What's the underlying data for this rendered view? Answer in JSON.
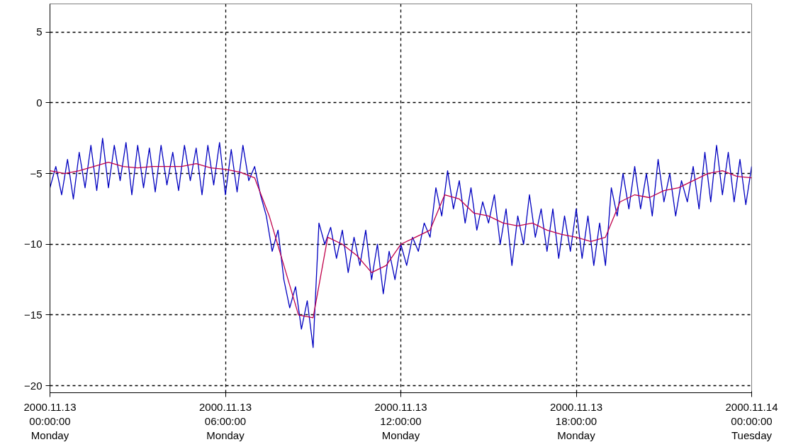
{
  "chart_data": {
    "type": "line",
    "xlim": [
      "2000-11-13T00:00",
      "2000-11-14T00:00"
    ],
    "xticks": [
      {
        "value": "2000-11-13T00:00",
        "label": "2000.11.13\n00:00:00\nMonday"
      },
      {
        "value": "2000-11-13T06:00",
        "label": "2000.11.13\n06:00:00\nMonday"
      },
      {
        "value": "2000-11-13T12:00",
        "label": "2000.11.13\n12:00:00\nMonday"
      },
      {
        "value": "2000-11-13T18:00",
        "label": "2000.11.13\n18:00:00\nMonday"
      },
      {
        "value": "2000-11-14T00:00",
        "label": "2000.11.14\n00:00:00\nTuesday"
      }
    ],
    "ylim": [
      -20.5,
      7
    ],
    "yticks": [
      -20,
      -15,
      -10,
      -5,
      0,
      5
    ],
    "grid": true,
    "line_style": "solid",
    "series": [
      {
        "color": "#0000c0",
        "x": [
          "2000-11-13T00:00",
          "2000-11-13T00:12",
          "2000-11-13T00:24",
          "2000-11-13T00:36",
          "2000-11-13T00:48",
          "2000-11-13T01:00",
          "2000-11-13T01:12",
          "2000-11-13T01:24",
          "2000-11-13T01:36",
          "2000-11-13T01:48",
          "2000-11-13T02:00",
          "2000-11-13T02:12",
          "2000-11-13T02:24",
          "2000-11-13T02:36",
          "2000-11-13T02:48",
          "2000-11-13T03:00",
          "2000-11-13T03:12",
          "2000-11-13T03:24",
          "2000-11-13T03:36",
          "2000-11-13T03:48",
          "2000-11-13T04:00",
          "2000-11-13T04:12",
          "2000-11-13T04:24",
          "2000-11-13T04:36",
          "2000-11-13T04:48",
          "2000-11-13T05:00",
          "2000-11-13T05:12",
          "2000-11-13T05:24",
          "2000-11-13T05:36",
          "2000-11-13T05:48",
          "2000-11-13T06:00",
          "2000-11-13T06:12",
          "2000-11-13T06:24",
          "2000-11-13T06:36",
          "2000-11-13T06:48",
          "2000-11-13T07:00",
          "2000-11-13T07:12",
          "2000-11-13T07:24",
          "2000-11-13T07:36",
          "2000-11-13T07:48",
          "2000-11-13T08:00",
          "2000-11-13T08:12",
          "2000-11-13T08:24",
          "2000-11-13T08:36",
          "2000-11-13T08:48",
          "2000-11-13T09:00",
          "2000-11-13T09:12",
          "2000-11-13T09:24",
          "2000-11-13T09:36",
          "2000-11-13T09:48",
          "2000-11-13T10:00",
          "2000-11-13T10:12",
          "2000-11-13T10:24",
          "2000-11-13T10:36",
          "2000-11-13T10:48",
          "2000-11-13T11:00",
          "2000-11-13T11:12",
          "2000-11-13T11:24",
          "2000-11-13T11:36",
          "2000-11-13T11:48",
          "2000-11-13T12:00",
          "2000-11-13T12:12",
          "2000-11-13T12:24",
          "2000-11-13T12:36",
          "2000-11-13T12:48",
          "2000-11-13T13:00",
          "2000-11-13T13:12",
          "2000-11-13T13:24",
          "2000-11-13T13:36",
          "2000-11-13T13:48",
          "2000-11-13T14:00",
          "2000-11-13T14:12",
          "2000-11-13T14:24",
          "2000-11-13T14:36",
          "2000-11-13T14:48",
          "2000-11-13T15:00",
          "2000-11-13T15:12",
          "2000-11-13T15:24",
          "2000-11-13T15:36",
          "2000-11-13T15:48",
          "2000-11-13T16:00",
          "2000-11-13T16:12",
          "2000-11-13T16:24",
          "2000-11-13T16:36",
          "2000-11-13T16:48",
          "2000-11-13T17:00",
          "2000-11-13T17:12",
          "2000-11-13T17:24",
          "2000-11-13T17:36",
          "2000-11-13T17:48",
          "2000-11-13T18:00",
          "2000-11-13T18:12",
          "2000-11-13T18:24",
          "2000-11-13T18:36",
          "2000-11-13T18:48",
          "2000-11-13T19:00",
          "2000-11-13T19:12",
          "2000-11-13T19:24",
          "2000-11-13T19:36",
          "2000-11-13T19:48",
          "2000-11-13T20:00",
          "2000-11-13T20:12",
          "2000-11-13T20:24",
          "2000-11-13T20:36",
          "2000-11-13T20:48",
          "2000-11-13T21:00",
          "2000-11-13T21:12",
          "2000-11-13T21:24",
          "2000-11-13T21:36",
          "2000-11-13T21:48",
          "2000-11-13T22:00",
          "2000-11-13T22:12",
          "2000-11-13T22:24",
          "2000-11-13T22:36",
          "2000-11-13T22:48",
          "2000-11-13T23:00",
          "2000-11-13T23:12",
          "2000-11-13T23:24",
          "2000-11-13T23:36",
          "2000-11-13T23:48",
          "2000-11-14T00:00"
        ],
        "values": [
          -6,
          -4.5,
          -6.5,
          -4,
          -6.8,
          -3.5,
          -6,
          -3,
          -6.2,
          -2.5,
          -6,
          -3,
          -5.5,
          -2.8,
          -6.5,
          -3,
          -6,
          -3.2,
          -6.3,
          -3,
          -5.8,
          -3.5,
          -6.2,
          -3,
          -5.5,
          -3.2,
          -6.5,
          -3,
          -5.8,
          -2.8,
          -6.5,
          -3.3,
          -6.3,
          -3,
          -5.5,
          -4.5,
          -6.5,
          -8,
          -10.5,
          -9,
          -12.5,
          -14.5,
          -13,
          -16,
          -14,
          -17.3,
          -8.5,
          -10,
          -8.8,
          -11,
          -9,
          -12,
          -9.5,
          -11.5,
          -9,
          -12.5,
          -10,
          -13.5,
          -10.5,
          -12.5,
          -10,
          -11.5,
          -9.5,
          -10.5,
          -8.5,
          -9.5,
          -6,
          -8,
          -4.8,
          -7.5,
          -5.5,
          -8.5,
          -6,
          -9,
          -7,
          -8.5,
          -6.5,
          -10,
          -7.5,
          -11.5,
          -8,
          -10,
          -6.5,
          -9.5,
          -7.5,
          -10.5,
          -7.5,
          -11,
          -8,
          -10.5,
          -7.5,
          -11,
          -8,
          -11.5,
          -8.5,
          -11.5,
          -6,
          -8,
          -5,
          -7.5,
          -4.5,
          -7.5,
          -5,
          -8,
          -4,
          -7,
          -5,
          -8,
          -5.5,
          -7,
          -4.5,
          -7.5,
          -3.5,
          -7,
          -3,
          -6.5,
          -3.5,
          -7,
          -4,
          -7.2,
          -4.5
        ]
      },
      {
        "color": "#c0004a",
        "x": [
          "2000-11-13T00:00",
          "2000-11-13T00:30",
          "2000-11-13T01:00",
          "2000-11-13T01:30",
          "2000-11-13T02:00",
          "2000-11-13T02:30",
          "2000-11-13T03:00",
          "2000-11-13T03:30",
          "2000-11-13T04:00",
          "2000-11-13T04:30",
          "2000-11-13T05:00",
          "2000-11-13T05:30",
          "2000-11-13T06:00",
          "2000-11-13T06:30",
          "2000-11-13T07:00",
          "2000-11-13T07:30",
          "2000-11-13T08:00",
          "2000-11-13T08:30",
          "2000-11-13T09:00",
          "2000-11-13T09:30",
          "2000-11-13T10:00",
          "2000-11-13T10:30",
          "2000-11-13T11:00",
          "2000-11-13T11:30",
          "2000-11-13T12:00",
          "2000-11-13T12:30",
          "2000-11-13T13:00",
          "2000-11-13T13:30",
          "2000-11-13T14:00",
          "2000-11-13T14:30",
          "2000-11-13T15:00",
          "2000-11-13T15:30",
          "2000-11-13T16:00",
          "2000-11-13T16:30",
          "2000-11-13T17:00",
          "2000-11-13T17:30",
          "2000-11-13T18:00",
          "2000-11-13T18:30",
          "2000-11-13T19:00",
          "2000-11-13T19:30",
          "2000-11-13T20:00",
          "2000-11-13T20:30",
          "2000-11-13T21:00",
          "2000-11-13T21:30",
          "2000-11-13T22:00",
          "2000-11-13T22:30",
          "2000-11-13T23:00",
          "2000-11-13T23:30",
          "2000-11-14T00:00"
        ],
        "values": [
          -4.8,
          -5,
          -4.8,
          -4.5,
          -4.2,
          -4.5,
          -4.6,
          -4.5,
          -4.5,
          -4.5,
          -4.3,
          -4.6,
          -4.7,
          -4.9,
          -5.3,
          -8,
          -11.5,
          -15,
          -15.2,
          -9.5,
          -10,
          -10.8,
          -12,
          -11.5,
          -10,
          -9.5,
          -9,
          -6.5,
          -6.8,
          -7.8,
          -8,
          -8.5,
          -8.7,
          -8.5,
          -9,
          -9.3,
          -9.5,
          -9.8,
          -9.5,
          -7,
          -6.5,
          -6.7,
          -6.2,
          -6,
          -5.5,
          -5,
          -4.8,
          -5.2,
          -5.3
        ]
      }
    ]
  }
}
